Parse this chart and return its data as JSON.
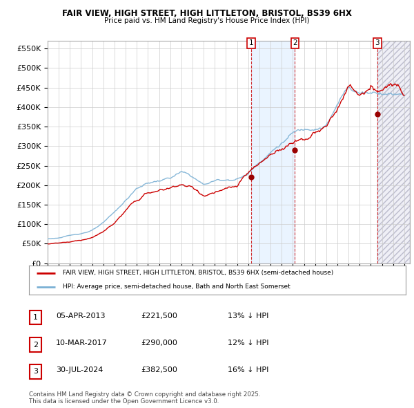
{
  "title1": "FAIR VIEW, HIGH STREET, HIGH LITTLETON, BRISTOL, BS39 6HX",
  "title2": "Price paid vs. HM Land Registry's House Price Index (HPI)",
  "ylim": [
    0,
    570000
  ],
  "yticks": [
    0,
    50000,
    100000,
    150000,
    200000,
    250000,
    300000,
    350000,
    400000,
    450000,
    500000,
    550000
  ],
  "xlim_start": 1995.0,
  "xlim_end": 2027.5,
  "property_color": "#cc0000",
  "hpi_color": "#7ab0d4",
  "sale_points": [
    {
      "num": 1,
      "year": 2013.27,
      "price": 221500
    },
    {
      "num": 2,
      "year": 2017.19,
      "price": 290000
    },
    {
      "num": 3,
      "year": 2024.58,
      "price": 382500
    }
  ],
  "legend_property": "FAIR VIEW, HIGH STREET, HIGH LITTLETON, BRISTOL, BS39 6HX (semi-detached house)",
  "legend_hpi": "HPI: Average price, semi-detached house, Bath and North East Somerset",
  "table_rows": [
    {
      "num": 1,
      "date": "05-APR-2013",
      "price": "£221,500",
      "pct": "13% ↓ HPI"
    },
    {
      "num": 2,
      "date": "10-MAR-2017",
      "price": "£290,000",
      "pct": "12% ↓ HPI"
    },
    {
      "num": 3,
      "date": "30-JUL-2024",
      "price": "£382,500",
      "pct": "16% ↓ HPI"
    }
  ],
  "footnote": "Contains HM Land Registry data © Crown copyright and database right 2025.\nThis data is licensed under the Open Government Licence v3.0.",
  "background_color": "#ffffff",
  "grid_color": "#cccccc",
  "shaded_region": {
    "start": 2013.27,
    "end": 2017.19,
    "color": "#ddeeff"
  },
  "hatched_region": {
    "start": 2024.58,
    "end": 2027.5,
    "color": "#e8e8f0"
  }
}
